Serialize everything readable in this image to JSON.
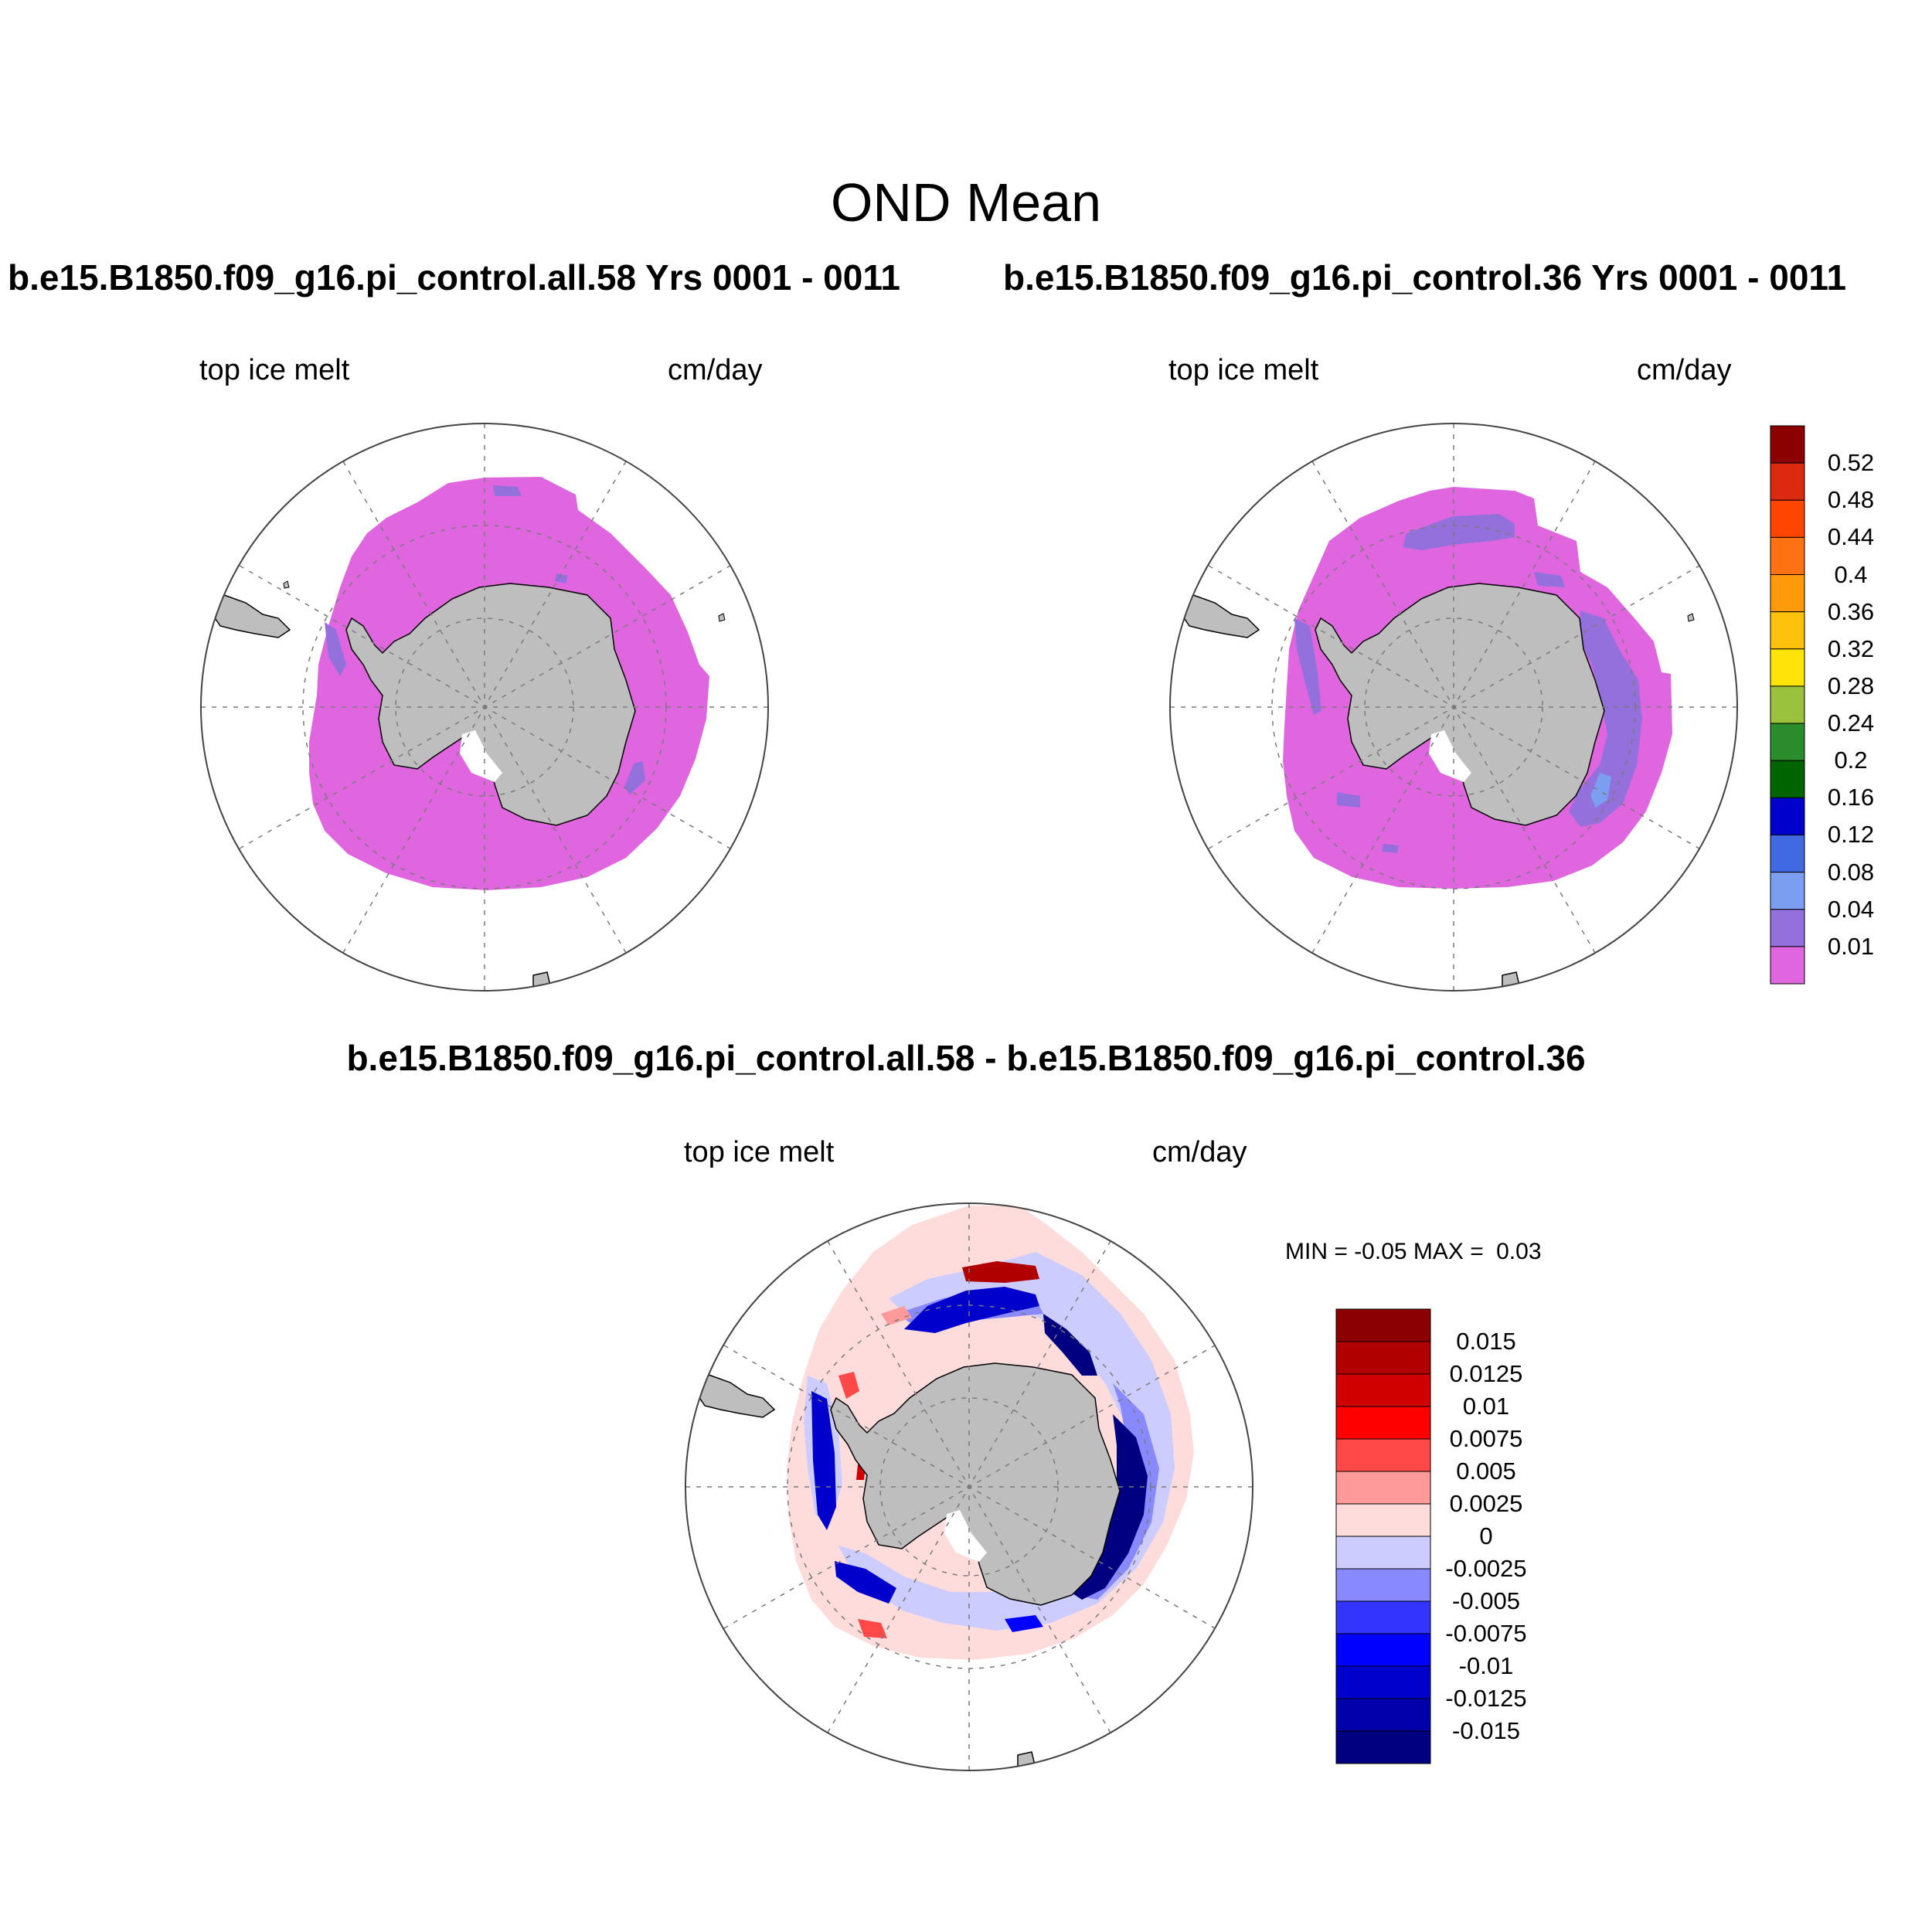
{
  "figure": {
    "title": "OND Mean",
    "colors": {
      "land": "#bebebe",
      "grid": "#7a7a7a",
      "background": "#ffffff"
    }
  },
  "panels": [
    {
      "id": "left",
      "title": "b.e15.B1850.f09_g16.pi_control.all.58  Yrs 0001 - 0011",
      "left_label": "top ice melt",
      "right_label": "cm/day"
    },
    {
      "id": "right",
      "title": "b.e15.B1850.f09_g16.pi_control.36  Yrs 0001 - 0011",
      "left_label": "top ice melt",
      "right_label": "cm/day"
    },
    {
      "id": "diff",
      "title": "b.e15.B1850.f09_g16.pi_control.all.58 - b.e15.B1850.f09_g16.pi_control.36",
      "left_label": "top ice melt",
      "right_label": "cm/day",
      "min_label": "MIN = ",
      "min_value": "-0.05",
      "max_label": "MAX = ",
      "max_value": "0.03"
    }
  ],
  "colorbars": {
    "top": {
      "labels": [
        "0.52",
        "0.48",
        "0.44",
        "0.4",
        "0.36",
        "0.32",
        "0.28",
        "0.24",
        "0.2",
        "0.16",
        "0.12",
        "0.08",
        "0.04",
        "0.01"
      ],
      "colors": [
        "#8b0000",
        "#dc2a10",
        "#ff4500",
        "#ff7214",
        "#ff9a0a",
        "#ffc20c",
        "#ffe40a",
        "#9ac23c",
        "#2a8c2a",
        "#006400",
        "#0000cd",
        "#4169e1",
        "#7b9ef0",
        "#9370db",
        "#e066e0"
      ]
    },
    "diff": {
      "labels": [
        "0.015",
        "0.0125",
        "0.01",
        "0.0075",
        "0.005",
        "0.0025",
        "0",
        "-0.0025",
        "-0.005",
        "-0.0075",
        "-0.01",
        "-0.0125",
        "-0.015"
      ],
      "colors": [
        "#8b0000",
        "#b00000",
        "#d00000",
        "#ff0000",
        "#ff4848",
        "#ff9a9a",
        "#ffdcdc",
        "#ccccff",
        "#8888ff",
        "#3434ff",
        "#0000ff",
        "#0000cc",
        "#0000aa",
        "#000080"
      ]
    }
  }
}
